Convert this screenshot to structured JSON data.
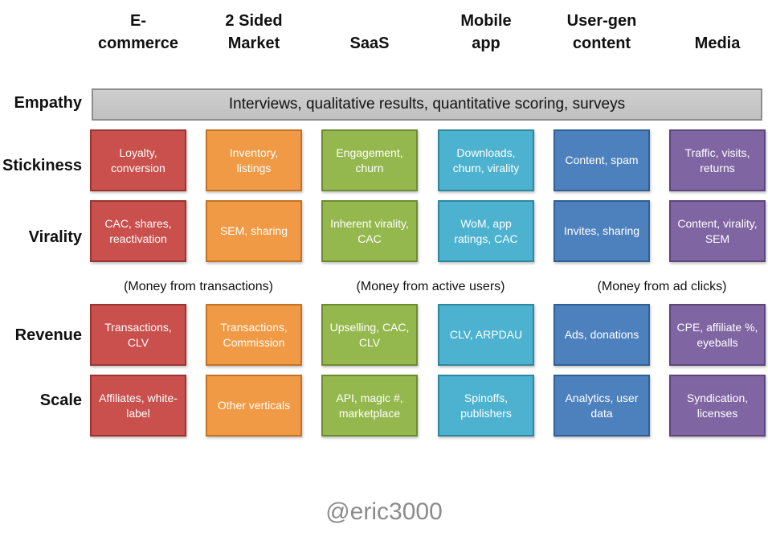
{
  "columns": [
    "E-\ncommerce",
    "2 Sided\nMarket",
    "SaaS",
    "Mobile\napp",
    "User-gen\ncontent",
    "Media"
  ],
  "rows": {
    "empathy": "Empathy",
    "stickiness": "Stickiness",
    "virality": "Virality",
    "revenue": "Revenue",
    "scale": "Scale"
  },
  "empathy_text": "Interviews, qualitative results, quantitative scoring, surveys",
  "stickiness": [
    "Loyalty, conversion",
    "Inventory, listings",
    "Engagement, churn",
    "Downloads, churn, virality",
    "Content, spam",
    "Traffic, visits, returns"
  ],
  "virality": [
    "CAC, shares, reactivation",
    "SEM, sharing",
    "Inherent virality, CAC",
    "WoM, app ratings, CAC",
    "Invites, sharing",
    "Content, virality, SEM"
  ],
  "money": [
    "(Money from transactions)",
    "(Money from active users)",
    "(Money from ad clicks)"
  ],
  "revenue": [
    "Transactions, CLV",
    "Transactions, Commission",
    "Upselling, CAC, CLV",
    "CLV, ARPDAU",
    "Ads, donations",
    "CPE, affiliate %, eyeballs"
  ],
  "scale": [
    "Affiliates, white-label",
    "Other verticals",
    "API, magic #, marketplace",
    "Spinoffs, publishers",
    "Analytics, user data",
    "Syndication, licenses"
  ],
  "credit": "@eric3000",
  "colors": {
    "ecommerce": "#c9504c",
    "market": "#f09a45",
    "saas": "#95b84e",
    "mobile": "#4cb2cf",
    "ugc": "#4d81bd",
    "media": "#8065a3",
    "empathy": "#c6c6c6"
  }
}
